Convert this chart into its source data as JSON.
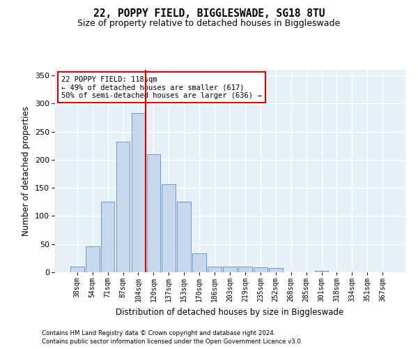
{
  "title": "22, POPPY FIELD, BIGGLESWADE, SG18 8TU",
  "subtitle": "Size of property relative to detached houses in Biggleswade",
  "xlabel": "Distribution of detached houses by size in Biggleswade",
  "ylabel": "Number of detached properties",
  "bins": [
    "38sqm",
    "54sqm",
    "71sqm",
    "87sqm",
    "104sqm",
    "120sqm",
    "137sqm",
    "153sqm",
    "170sqm",
    "186sqm",
    "203sqm",
    "219sqm",
    "235sqm",
    "252sqm",
    "268sqm",
    "285sqm",
    "301sqm",
    "318sqm",
    "334sqm",
    "351sqm",
    "367sqm"
  ],
  "values": [
    10,
    46,
    126,
    232,
    283,
    210,
    157,
    125,
    34,
    10,
    10,
    10,
    9,
    7,
    0,
    0,
    2,
    0,
    0,
    0,
    0
  ],
  "bar_color": "#c5d8ee",
  "bar_edge_color": "#5b8ec4",
  "vline_color": "#cc0000",
  "annotation_text": "22 POPPY FIELD: 118sqm\n← 49% of detached houses are smaller (617)\n50% of semi-detached houses are larger (636) →",
  "annotation_box_color": "#ffffff",
  "annotation_border_color": "#cc0000",
  "footnote1": "Contains HM Land Registry data © Crown copyright and database right 2024.",
  "footnote2": "Contains public sector information licensed under the Open Government Licence v3.0.",
  "ylim": [
    0,
    360
  ],
  "background_color": "#e8f0f8",
  "grid_color": "#ffffff",
  "fig_background": "#ffffff"
}
